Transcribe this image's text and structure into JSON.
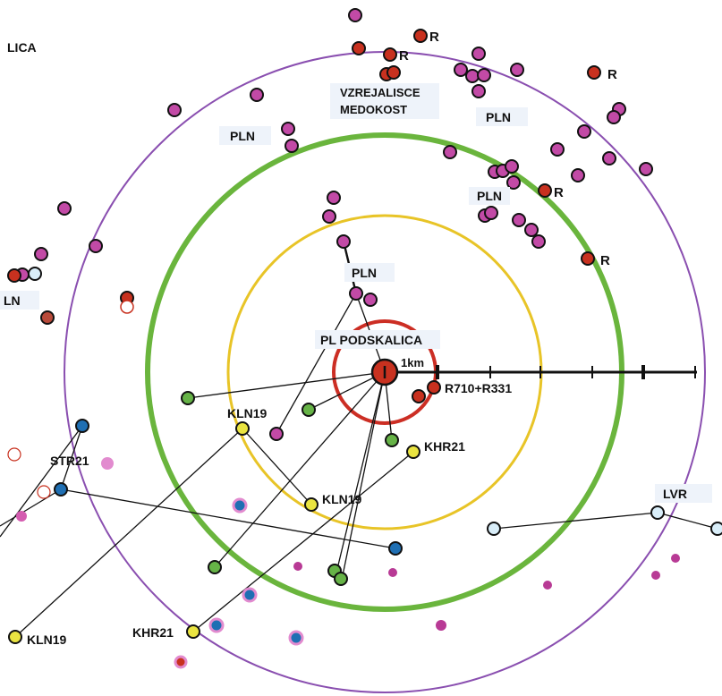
{
  "colors": {
    "outer_ring": "#8a4fb0",
    "green_ring": "#6ab53d",
    "yellow_ring": "#e8c427",
    "red_ring": "#cc2e24",
    "magenta_marker": "#c24aa6",
    "red_marker": "#c8311f",
    "green_marker": "#66b347",
    "yellow_marker": "#eae441",
    "blue_marker": "#1f6fb3",
    "light_blue_marker": "#d9eef9",
    "label_background": "#eef3fa"
  },
  "labels": {
    "lica": "LICA",
    "vzrejalisce_1": "VZREJALISCE",
    "vzrejalisce_2": "MEDOKOST",
    "pln_upper_left": "PLN",
    "pln_upper_right": "PLN",
    "pln_mid_right": "PLN",
    "pln_center": "PLN",
    "ln_left_edge": "LN",
    "pl_podskalica": "PL PODSKALICA",
    "scale_1km": "1km",
    "r710_r331": "R710+R331",
    "r_top_1": "R",
    "r_top_2": "R",
    "r_top_right": "R",
    "r_mid_right": "R",
    "r_right": "R",
    "kln19_mid": "KLN19",
    "kln19_center": "KLN19",
    "kln19_bottom_left": "KLN19",
    "khr21_right": "KHR21",
    "khr21_bottom": "KHR21",
    "str21": "STR21",
    "lvr": "LVR"
  },
  "legend_icons": {
    "center_apiary": "apiary-center-icon",
    "scale": "distance-scale-icon"
  }
}
